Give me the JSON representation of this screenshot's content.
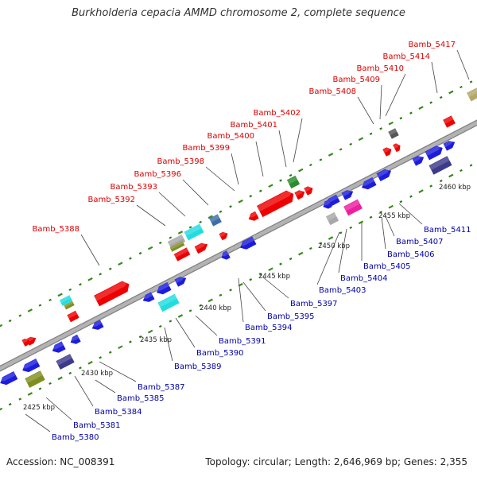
{
  "title": "Burkholderia cepacia AMMD chromosome 2, complete sequence",
  "accession": "Accession: NC_008391",
  "topology": "Topology: circular; Length: 2,646,969 bp; Genes: 2,355",
  "colors": {
    "backbone": "#b3b3b3",
    "label_top": "#dd0000",
    "label_bottom": "#0000aa",
    "tick_major": "#3a8a1a",
    "tick_minor": "#2d7a16",
    "leader": "#444444",
    "gene_red": "#ee0000",
    "gene_blue": "#1c1cdd",
    "gene_navy": "#3e3a8a",
    "gene_cyan": "#22dde0",
    "gene_olive": "#7f8f1f",
    "gene_green": "#2a8c2a",
    "gene_grey": "#a8a8a8",
    "gene_darkgrey": "#555555",
    "gene_steel": "#3c6ea8",
    "gene_khaki": "#b3a76a",
    "gene_magenta": "#ee1ea0"
  },
  "kbp_labels": [
    "2425 kbp",
    "2430 kbp",
    "2435 kbp",
    "2440 kbp",
    "2445 kbp",
    "2450 kbp",
    "2455 kbp",
    "2460 kbp"
  ],
  "top_labels": [
    "Bamb_5388",
    "Bamb_5392",
    "Bamb_5393",
    "Bamb_5396",
    "Bamb_5398",
    "Bamb_5399",
    "Bamb_5400",
    "Bamb_5401",
    "Bamb_5402",
    "Bamb_5408",
    "Bamb_5409",
    "Bamb_5410",
    "Bamb_5414",
    "Bamb_5417"
  ],
  "bottom_labels": [
    "Bamb_5380",
    "Bamb_5381",
    "Bamb_5384",
    "Bamb_5385",
    "Bamb_5387",
    "Bamb_5389",
    "Bamb_5390",
    "Bamb_5391",
    "Bamb_5394",
    "Bamb_5395",
    "Bamb_5397",
    "Bamb_5403",
    "Bamb_5404",
    "Bamb_5405",
    "Bamb_5406",
    "Bamb_5407",
    "Bamb_5411"
  ]
}
